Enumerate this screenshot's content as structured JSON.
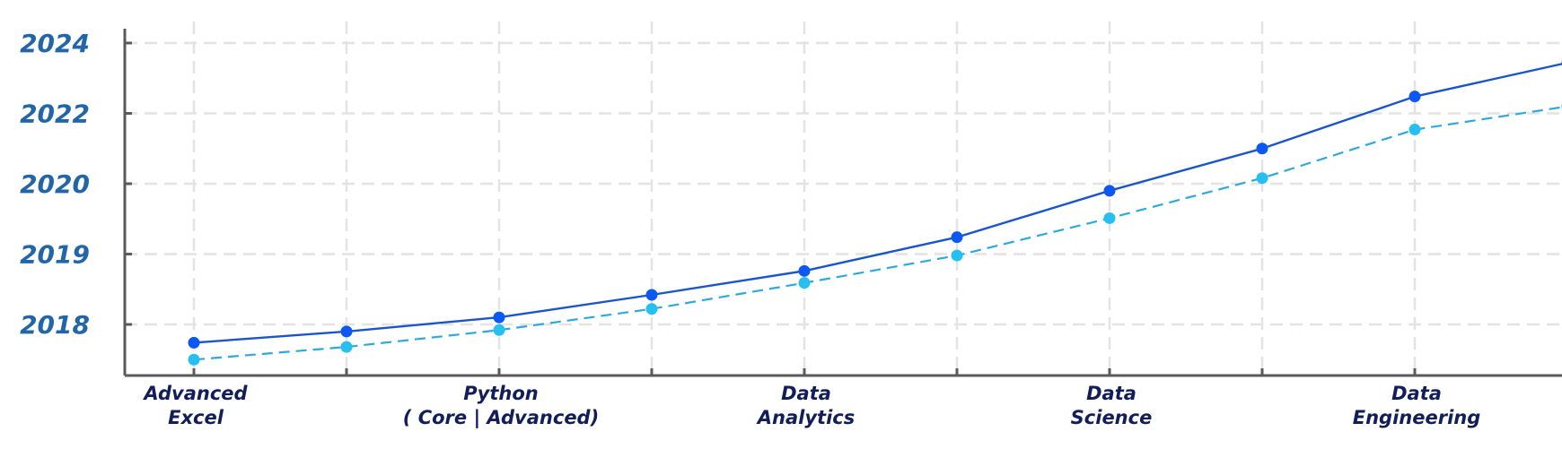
{
  "chart_data": {
    "type": "line",
    "x_positions": [
      0,
      1,
      2,
      3,
      4,
      5,
      6,
      7,
      8,
      9
    ],
    "x_tick_labels": [
      {
        "pos": 0,
        "lines": [
          "Advanced",
          "Excel"
        ]
      },
      {
        "pos": 2,
        "lines": [
          "Python",
          "( Core | Advanced)"
        ]
      },
      {
        "pos": 4,
        "lines": [
          "Data",
          "Analytics"
        ]
      },
      {
        "pos": 6,
        "lines": [
          "Data",
          "Science"
        ]
      },
      {
        "pos": 8,
        "lines": [
          "Data",
          "Engineering"
        ]
      }
    ],
    "y_tick_labels": [
      "2018",
      "2019",
      "2020",
      "2022",
      "2024"
    ],
    "y_index_range": [
      -0.73,
      4.45
    ],
    "series": [
      {
        "style": "solid",
        "line_color": "#1a56c9",
        "marker_color": "#0d57f2",
        "values": [
          -0.26,
          -0.1,
          0.1,
          0.42,
          0.76,
          1.24,
          1.9,
          2.5,
          3.24,
          3.72
        ]
      },
      {
        "style": "dashed",
        "line_color": "#2fa8dc",
        "marker_color": "#27bff0",
        "values": [
          -0.5,
          -0.32,
          -0.08,
          0.22,
          0.59,
          0.98,
          1.51,
          2.08,
          2.77,
          3.1
        ]
      }
    ],
    "grid": true,
    "colors": {
      "y_tick_text": "#2266a8",
      "x_tick_text": "#121e5a",
      "axis": "#5a5a5a",
      "grid": "#e3e3e3"
    }
  }
}
